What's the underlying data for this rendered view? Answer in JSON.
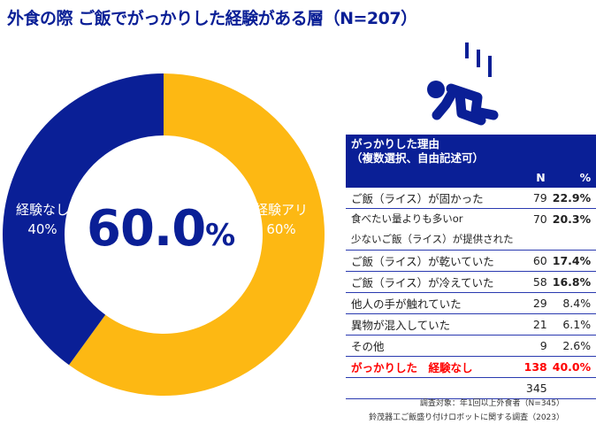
{
  "title": "外食の際 ご飯でがっかりした経験がある層（N=207）",
  "chart_data": {
    "type": "pie",
    "slices": [
      {
        "label": "経験アリ",
        "value": 60,
        "value_label": "60%",
        "color": "#FDB813"
      },
      {
        "label": "経験なし",
        "value": 40,
        "value_label": "40%",
        "color": "#0a1f96"
      }
    ],
    "center_value": "60.0",
    "center_unit": "%"
  },
  "icon": "falling-person-icon",
  "table": {
    "header_line1": "がっかりした理由",
    "header_line2": "（複数選択、自由記述可）",
    "col_n": "N",
    "col_pct": "%",
    "rows": [
      {
        "reason": "ご飯（ライス）が固かった",
        "n": "79",
        "pct": "22.9%",
        "bold": true
      },
      {
        "reason": "食べたい量よりも多いor",
        "reason2": "少ないご飯（ライス）が提供された",
        "n": "70",
        "pct": "20.3%",
        "bold": true
      },
      {
        "reason": "ご飯（ライス）が乾いていた",
        "n": "60",
        "pct": "17.4%",
        "bold": true
      },
      {
        "reason": "ご飯（ライス）が冷えていた",
        "n": "58",
        "pct": "16.8%",
        "bold": true
      },
      {
        "reason": "他人の手が触れていた",
        "n": "29",
        "pct": "8.4%",
        "bold": false
      },
      {
        "reason": "異物が混入していた",
        "n": "21",
        "pct": "6.1%",
        "bold": false
      },
      {
        "reason": "その他",
        "n": "9",
        "pct": "2.6%",
        "bold": false
      },
      {
        "reason": "がっかりした　経験なし",
        "n": "138",
        "pct": "40.0%",
        "bold": true,
        "red": true
      }
    ],
    "total": "345"
  },
  "footnotes": [
    "調査対象：年1回以上外食者（N=345）",
    "鈴茂器工ご飯盛り付けロボットに関する調査（2023）"
  ]
}
